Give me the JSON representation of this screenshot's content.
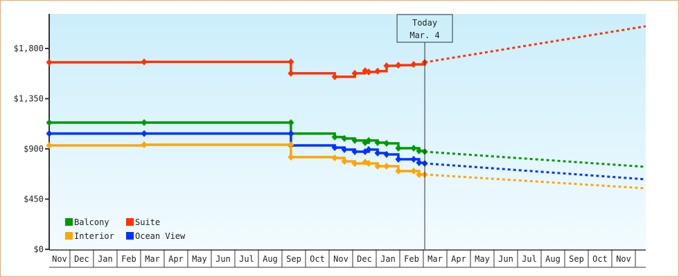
{
  "chart_data": {
    "type": "line",
    "title": "",
    "xlabel": "",
    "ylabel": "",
    "ylim": [
      0,
      2100
    ],
    "x_unit": "months since start of first Nov",
    "xlim": [
      0.12,
      25.44
    ],
    "yticks": [
      0,
      450,
      900,
      1350,
      1800
    ],
    "ytick_labels": [
      "$0",
      "$450",
      "$900",
      "$1,350",
      "$1,800"
    ],
    "month_labels": [
      "Nov",
      "Dec",
      "Jan",
      "Feb",
      "Mar",
      "Apr",
      "May",
      "Jun",
      "Jul",
      "Aug",
      "Sep",
      "Oct",
      "Nov",
      "Dec",
      "Jan",
      "Feb",
      "Mar",
      "Apr",
      "May",
      "Jun",
      "Jul",
      "Aug",
      "Sep",
      "Oct",
      "Nov"
    ],
    "today": {
      "label": "Today",
      "date": "Mar. 4",
      "x": 16.06
    },
    "legend_position": "bottom-left",
    "series": [
      {
        "name": "Suite",
        "color": "#ff3300",
        "points": [
          [
            0.12,
            1676
          ],
          [
            4.15,
            1680
          ],
          [
            10.38,
            1680
          ],
          [
            10.38,
            1577
          ],
          [
            12.24,
            1546
          ],
          [
            13.09,
            1577
          ],
          [
            13.53,
            1600
          ],
          [
            13.68,
            1590
          ],
          [
            14.06,
            1597
          ],
          [
            14.44,
            1645
          ],
          [
            14.94,
            1650
          ],
          [
            15.59,
            1657
          ],
          [
            16.06,
            1676
          ]
        ],
        "projection": [
          [
            16.06,
            1676
          ],
          [
            25.44,
            1999
          ]
        ]
      },
      {
        "name": "Balcony",
        "color": "#009900",
        "points": [
          [
            0.12,
            1136
          ],
          [
            4.15,
            1136
          ],
          [
            10.38,
            1136
          ],
          [
            10.38,
            1037
          ],
          [
            12.24,
            1006
          ],
          [
            12.65,
            993
          ],
          [
            13.09,
            975
          ],
          [
            13.53,
            956
          ],
          [
            13.68,
            975
          ],
          [
            14.06,
            956
          ],
          [
            14.44,
            950
          ],
          [
            14.94,
            906
          ],
          [
            15.59,
            906
          ],
          [
            15.82,
            882
          ],
          [
            16.06,
            875
          ]
        ],
        "projection": [
          [
            16.06,
            875
          ],
          [
            25.44,
            739
          ]
        ]
      },
      {
        "name": "Ocean View",
        "color": "#0033ff",
        "points": [
          [
            0.12,
            1037
          ],
          [
            4.15,
            1037
          ],
          [
            10.38,
            1037
          ],
          [
            10.38,
            931
          ],
          [
            12.24,
            912
          ],
          [
            12.65,
            894
          ],
          [
            13.09,
            875
          ],
          [
            13.53,
            875
          ],
          [
            13.68,
            894
          ],
          [
            14.06,
            863
          ],
          [
            14.44,
            850
          ],
          [
            14.94,
            807
          ],
          [
            15.59,
            807
          ],
          [
            15.82,
            776
          ],
          [
            16.06,
            770
          ]
        ],
        "projection": [
          [
            16.06,
            770
          ],
          [
            25.44,
            627
          ]
        ]
      },
      {
        "name": "Interior",
        "color": "#ffa500",
        "points": [
          [
            0.12,
            931
          ],
          [
            4.15,
            937
          ],
          [
            10.38,
            937
          ],
          [
            10.38,
            826
          ],
          [
            12.24,
            819
          ],
          [
            12.65,
            788
          ],
          [
            13.09,
            770
          ],
          [
            13.53,
            782
          ],
          [
            13.68,
            770
          ],
          [
            14.06,
            745
          ],
          [
            14.44,
            745
          ],
          [
            14.94,
            701
          ],
          [
            15.59,
            701
          ],
          [
            15.82,
            670
          ],
          [
            16.06,
            670
          ]
        ],
        "projection": [
          [
            16.06,
            670
          ],
          [
            25.44,
            546
          ]
        ]
      }
    ],
    "legend": [
      {
        "name": "Balcony",
        "color": "#009900"
      },
      {
        "name": "Suite",
        "color": "#ff3300"
      },
      {
        "name": "Interior",
        "color": "#ffa500"
      },
      {
        "name": "Ocean View",
        "color": "#0033ff"
      }
    ]
  }
}
